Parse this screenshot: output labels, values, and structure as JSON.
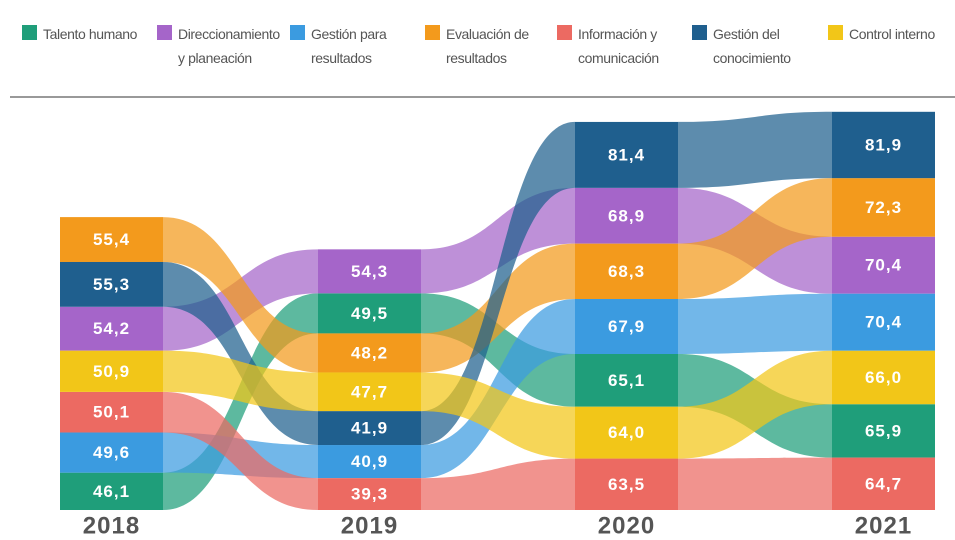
{
  "chart_data": {
    "type": "bump",
    "categories": [
      "2018",
      "2019",
      "2020",
      "2021"
    ],
    "series": [
      {
        "name": "Talento humano",
        "color": "#1f9e7a",
        "values": [
          46.1,
          49.5,
          65.1,
          65.9
        ],
        "value_labels": [
          "46,1",
          "49,5",
          "65,1",
          "65,9"
        ]
      },
      {
        "name": "Direccionamiento y planeación",
        "color": "#a565c9",
        "values": [
          54.2,
          54.3,
          68.9,
          70.4
        ],
        "value_labels": [
          "54,2",
          "54,3",
          "68,9",
          "70,4"
        ]
      },
      {
        "name": "Gestión para resultados",
        "color": "#3b9be0",
        "values": [
          49.6,
          40.9,
          67.9,
          70.4
        ],
        "value_labels": [
          "49,6",
          "40,9",
          "67,9",
          "70,4"
        ]
      },
      {
        "name": "Evaluación de resultados",
        "color": "#f39a1c",
        "values": [
          55.4,
          48.2,
          68.3,
          72.3
        ],
        "value_labels": [
          "55,4",
          "48,2",
          "68,3",
          "72,3"
        ]
      },
      {
        "name": "Información y comunicación",
        "color": "#ec6a62",
        "values": [
          50.1,
          39.3,
          63.5,
          64.7
        ],
        "value_labels": [
          "50,1",
          "39,3",
          "63,5",
          "64,7"
        ]
      },
      {
        "name": "Gestión del conocimiento",
        "color": "#1f5f8e",
        "values": [
          55.3,
          41.9,
          81.4,
          81.9
        ],
        "value_labels": [
          "55,3",
          "41,9",
          "81,4",
          "81,9"
        ]
      },
      {
        "name": "Control interno",
        "color": "#f2c618",
        "values": [
          50.9,
          47.7,
          64.0,
          66.0
        ],
        "value_labels": [
          "50,9",
          "47,7",
          "64,0",
          "66,0"
        ]
      }
    ]
  }
}
